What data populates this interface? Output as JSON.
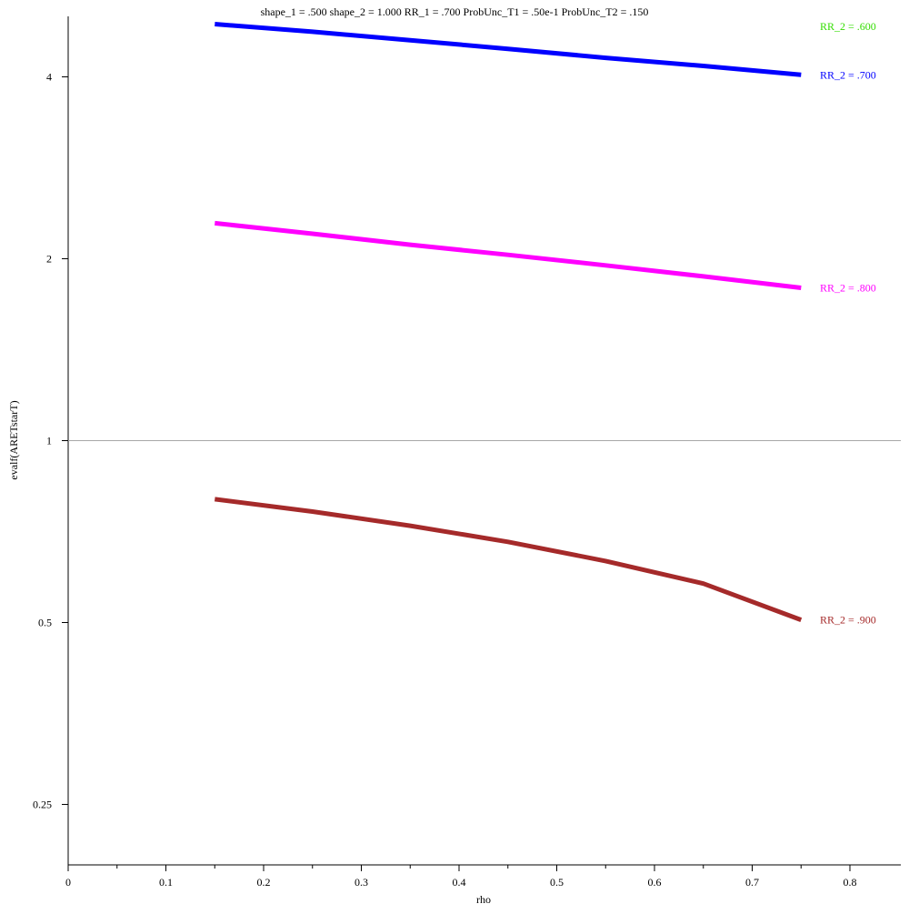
{
  "chart_data": {
    "type": "line",
    "title": "shape_1 = .500  shape_2 = 1.000  RR_1 = .700  ProbUnc_T1 = .50e-1  ProbUnc_T2 = .150",
    "xlabel": "rho",
    "ylabel": "evalf(ARETstarT)",
    "y_scale": "log2",
    "xlim": [
      0,
      0.85
    ],
    "ylim": [
      0.18,
      4.9
    ],
    "x_ticks": [
      {
        "value": 0,
        "label": "0"
      },
      {
        "value": 0.1,
        "label": "0.1"
      },
      {
        "value": 0.2,
        "label": "0.2"
      },
      {
        "value": 0.3,
        "label": "0.3"
      },
      {
        "value": 0.4,
        "label": "0.4"
      },
      {
        "value": 0.5,
        "label": "0.5"
      },
      {
        "value": 0.6,
        "label": "0.6"
      },
      {
        "value": 0.7,
        "label": "0.7"
      },
      {
        "value": 0.8,
        "label": "0.8"
      }
    ],
    "x_minor_ticks": [
      0.05,
      0.15,
      0.25,
      0.35,
      0.45,
      0.55,
      0.65,
      0.75
    ],
    "y_ticks": [
      {
        "value": 0.25,
        "label": "0.25"
      },
      {
        "value": 0.5,
        "label": "0.5"
      },
      {
        "value": 1,
        "label": "1"
      },
      {
        "value": 2,
        "label": "2"
      },
      {
        "value": 4,
        "label": "4"
      }
    ],
    "reference_line": 1,
    "grid": false,
    "legend_placement": "right",
    "series": [
      {
        "name": "RR_2 = .600",
        "color": "#33dd00",
        "x": [],
        "y": []
      },
      {
        "name": "RR_2 = .700",
        "color": "#0000ff",
        "x": [
          0.15,
          0.25,
          0.35,
          0.45,
          0.55,
          0.65,
          0.75
        ],
        "y": [
          4.89,
          4.75,
          4.6,
          4.45,
          4.3,
          4.17,
          4.03
        ]
      },
      {
        "name": "RR_2 = .800",
        "color": "#ff00ff",
        "x": [
          0.15,
          0.25,
          0.35,
          0.45,
          0.55,
          0.65,
          0.75
        ],
        "y": [
          2.29,
          2.2,
          2.11,
          2.03,
          1.95,
          1.87,
          1.79
        ]
      },
      {
        "name": "RR_2 = .900",
        "color": "#a52a2a",
        "x": [
          0.15,
          0.25,
          0.35,
          0.45,
          0.55,
          0.65,
          0.75
        ],
        "y": [
          0.8,
          0.763,
          0.723,
          0.68,
          0.632,
          0.58,
          0.505
        ]
      }
    ]
  }
}
